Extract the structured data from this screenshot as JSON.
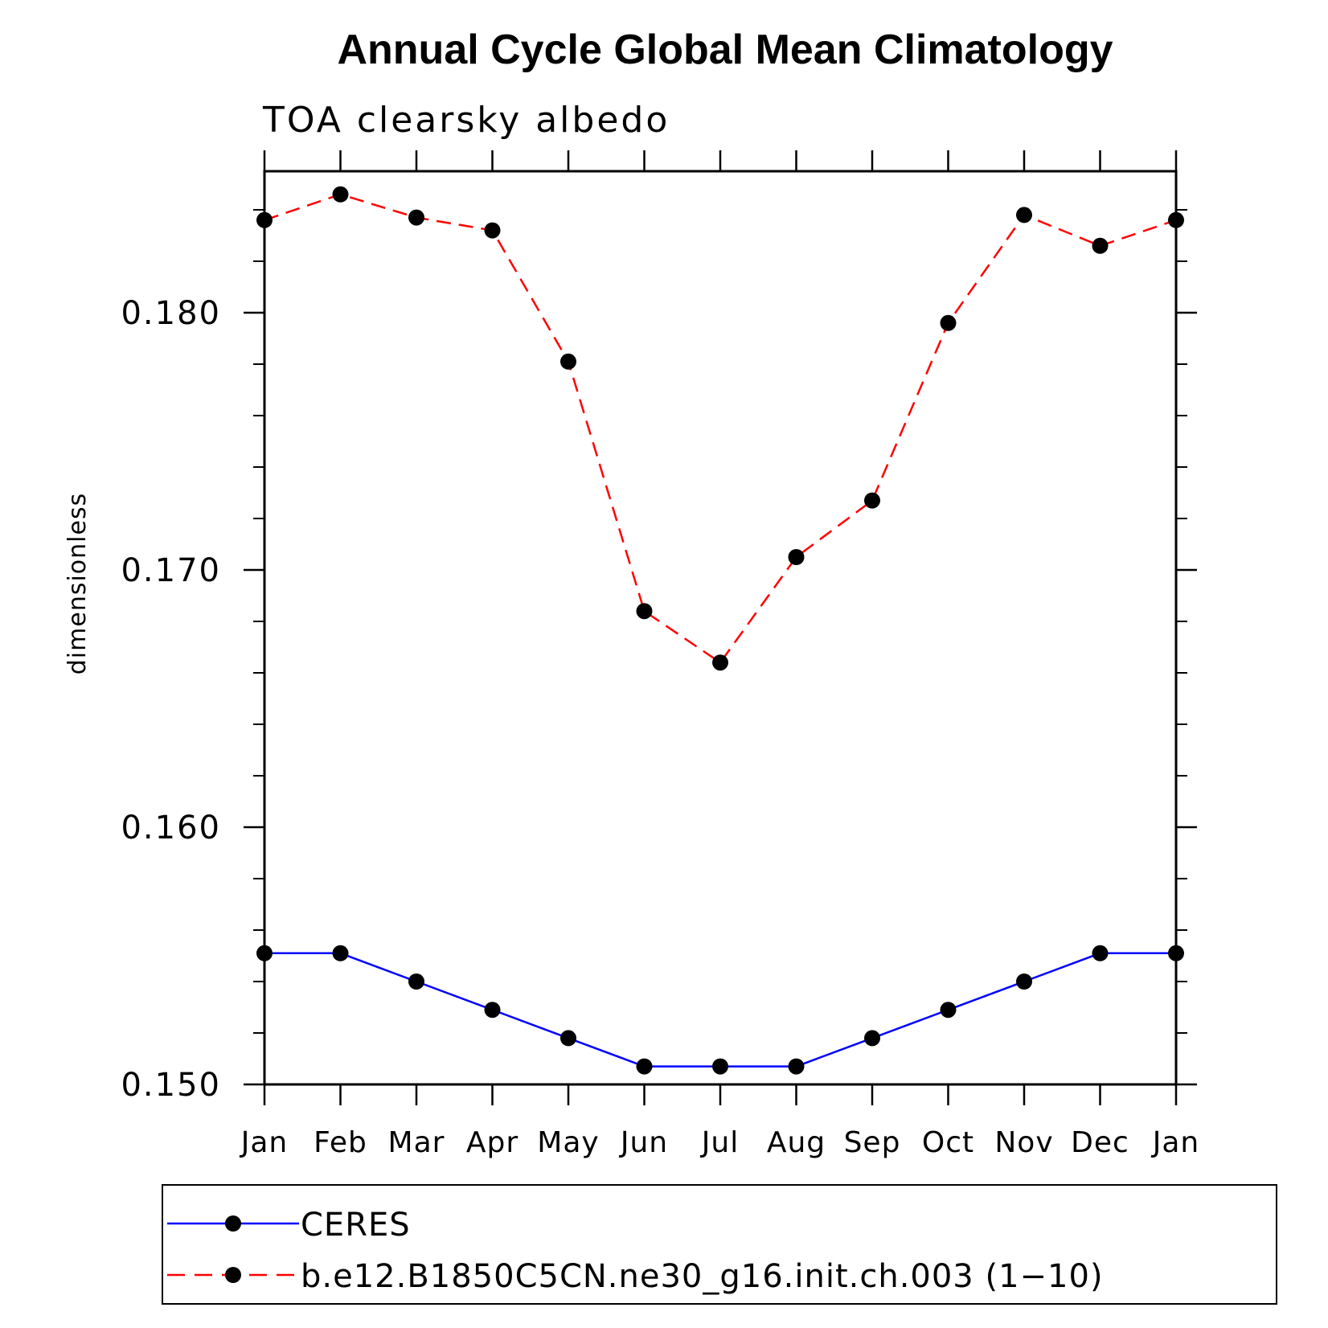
{
  "chart_data": {
    "type": "line",
    "title": "Annual Cycle Global Mean Climatology",
    "subtitle": "TOA clearsky albedo",
    "ylabel": "dimensionless",
    "xlabel": "",
    "categories": [
      "Jan",
      "Feb",
      "Mar",
      "Apr",
      "May",
      "Jun",
      "Jul",
      "Aug",
      "Sep",
      "Oct",
      "Nov",
      "Dec",
      "Jan"
    ],
    "ylim": [
      0.15,
      0.1855
    ],
    "yticks": [
      0.15,
      0.16,
      0.17,
      0.18
    ],
    "ytick_labels": [
      "0.150",
      "0.160",
      "0.170",
      "0.180"
    ],
    "series": [
      {
        "name": "CERES",
        "color": "#0000ff",
        "dash": "solid",
        "marker": "circle",
        "values": [
          0.1551,
          0.1551,
          0.154,
          0.1529,
          0.1518,
          0.1507,
          0.1507,
          0.1507,
          0.1518,
          0.1529,
          0.154,
          0.1551,
          0.1551
        ]
      },
      {
        "name": "b.e12.B1850C5CN.ne30_g16.init.ch.003 (1−10)",
        "color": "#ff0000",
        "dash": "dashed",
        "marker": "circle",
        "values": [
          0.1836,
          0.1846,
          0.1837,
          0.1832,
          0.1781,
          0.1684,
          0.1664,
          0.1705,
          0.1727,
          0.1796,
          0.1838,
          0.1826,
          0.1836
        ]
      }
    ],
    "grid": false,
    "legend_position": "bottom"
  }
}
